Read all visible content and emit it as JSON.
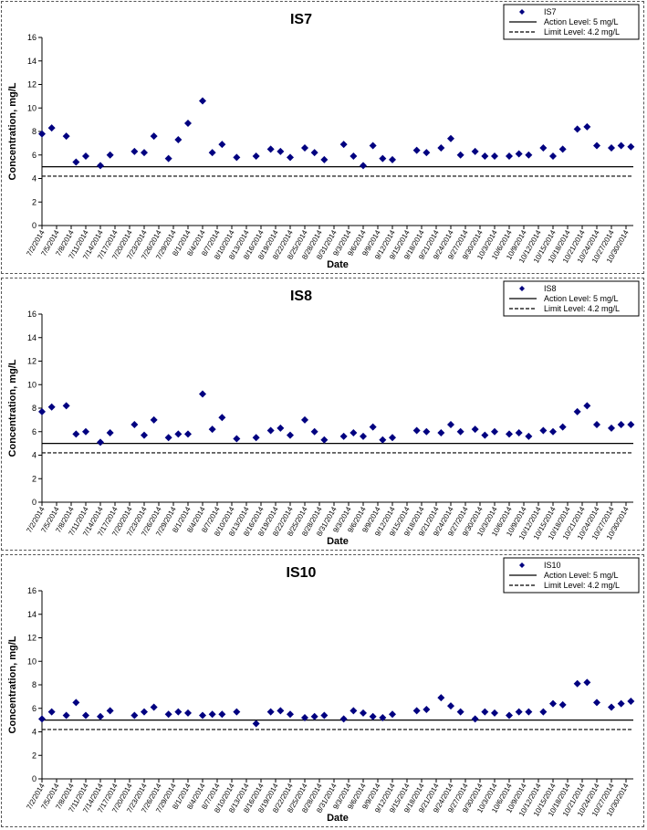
{
  "chart_data": [
    {
      "type": "scatter",
      "title": "IS7",
      "xlabel": "Date",
      "ylabel": "Concentration, mg/L",
      "ylim": [
        0,
        16
      ],
      "yticks": [
        0,
        2,
        4,
        6,
        8,
        10,
        12,
        14,
        16
      ],
      "grid": false,
      "legend": "top-right",
      "x_tick_labels": [
        "7/2/2014",
        "7/5/2014",
        "7/8/2014",
        "7/11/2014",
        "7/14/2014",
        "7/17/2014",
        "7/20/2014",
        "7/23/2014",
        "7/26/2014",
        "7/29/2014",
        "8/1/2014",
        "8/4/2014",
        "8/7/2014",
        "8/10/2014",
        "8/13/2014",
        "8/16/2014",
        "8/19/2014",
        "8/22/2014",
        "8/25/2014",
        "8/28/2014",
        "8/31/2014",
        "9/3/2014",
        "9/6/2014",
        "9/9/2014",
        "9/12/2014",
        "9/15/2014",
        "9/18/2014",
        "9/21/2014",
        "9/24/2014",
        "9/27/2014",
        "9/30/2014",
        "10/3/2014",
        "10/6/2014",
        "10/9/2014",
        "10/12/2014",
        "10/15/2014",
        "10/18/2014",
        "10/21/2014",
        "10/24/2014",
        "10/27/2014",
        "10/30/2014"
      ],
      "series": [
        {
          "name": "IS7",
          "marker": "diamond",
          "color": "#000080",
          "x": [
            "7/2/2014",
            "7/4/2014",
            "7/7/2014",
            "7/9/2014",
            "7/11/2014",
            "7/14/2014",
            "7/16/2014",
            "7/21/2014",
            "7/23/2014",
            "7/25/2014",
            "7/28/2014",
            "7/30/2014",
            "8/1/2014",
            "8/4/2014",
            "8/6/2014",
            "8/8/2014",
            "8/11/2014",
            "8/15/2014",
            "8/18/2014",
            "8/20/2014",
            "8/22/2014",
            "8/25/2014",
            "8/27/2014",
            "8/29/2014",
            "9/2/2014",
            "9/4/2014",
            "9/6/2014",
            "9/8/2014",
            "9/10/2014",
            "9/12/2014",
            "9/17/2014",
            "9/19/2014",
            "9/22/2014",
            "9/24/2014",
            "9/26/2014",
            "9/29/2014",
            "10/1/2014",
            "10/3/2014",
            "10/6/2014",
            "10/8/2014",
            "10/10/2014",
            "10/13/2014",
            "10/15/2014",
            "10/17/2014",
            "10/20/2014",
            "10/22/2014",
            "10/24/2014",
            "10/27/2014",
            "10/29/2014",
            "10/31/2014"
          ],
          "y": [
            7.8,
            8.3,
            7.6,
            5.4,
            5.9,
            5.1,
            6.0,
            6.3,
            6.2,
            7.6,
            5.7,
            7.3,
            8.7,
            10.6,
            6.2,
            6.9,
            5.8,
            5.9,
            6.5,
            6.3,
            5.8,
            6.6,
            6.2,
            5.6,
            6.9,
            5.9,
            5.1,
            6.8,
            5.7,
            5.6,
            6.4,
            6.2,
            6.6,
            7.4,
            6.0,
            6.3,
            5.9,
            5.9,
            5.9,
            6.1,
            6.0,
            6.6,
            5.9,
            6.5,
            8.2,
            8.4,
            6.8,
            6.6,
            6.8,
            6.7
          ]
        },
        {
          "name": "Action Level: 5 mg/L",
          "line": "solid",
          "value": 5
        },
        {
          "name": "Limit Level: 4.2 mg/L",
          "line": "dashed",
          "value": 4.2
        }
      ]
    },
    {
      "type": "scatter",
      "title": "IS8",
      "xlabel": "Date",
      "ylabel": "Concentration, mg/L",
      "ylim": [
        0,
        16
      ],
      "yticks": [
        0,
        2,
        4,
        6,
        8,
        10,
        12,
        14,
        16
      ],
      "grid": false,
      "legend": "top-right",
      "x_tick_labels": [
        "7/2/2014",
        "7/5/2014",
        "7/8/2014",
        "7/11/2014",
        "7/14/2014",
        "7/17/2014",
        "7/20/2014",
        "7/23/2014",
        "7/26/2014",
        "7/29/2014",
        "8/1/2014",
        "8/4/2014",
        "8/7/2014",
        "8/10/2014",
        "8/13/2014",
        "8/16/2014",
        "8/19/2014",
        "8/22/2014",
        "8/25/2014",
        "8/28/2014",
        "8/31/2014",
        "9/3/2014",
        "9/6/2014",
        "9/9/2014",
        "9/12/2014",
        "9/15/2014",
        "9/18/2014",
        "9/21/2014",
        "9/24/2014",
        "9/27/2014",
        "9/30/2014",
        "10/3/2014",
        "10/6/2014",
        "10/9/2014",
        "10/12/2014",
        "10/15/2014",
        "10/18/2014",
        "10/21/2014",
        "10/24/2014",
        "10/27/2014",
        "10/30/2014"
      ],
      "series": [
        {
          "name": "IS8",
          "marker": "diamond",
          "color": "#000080",
          "x": [
            "7/2/2014",
            "7/4/2014",
            "7/7/2014",
            "7/9/2014",
            "7/11/2014",
            "7/14/2014",
            "7/16/2014",
            "7/21/2014",
            "7/23/2014",
            "7/25/2014",
            "7/28/2014",
            "7/30/2014",
            "8/1/2014",
            "8/4/2014",
            "8/6/2014",
            "8/8/2014",
            "8/11/2014",
            "8/15/2014",
            "8/18/2014",
            "8/20/2014",
            "8/22/2014",
            "8/25/2014",
            "8/27/2014",
            "8/29/2014",
            "9/2/2014",
            "9/4/2014",
            "9/6/2014",
            "9/8/2014",
            "9/10/2014",
            "9/12/2014",
            "9/17/2014",
            "9/19/2014",
            "9/22/2014",
            "9/24/2014",
            "9/26/2014",
            "9/29/2014",
            "10/1/2014",
            "10/3/2014",
            "10/6/2014",
            "10/8/2014",
            "10/10/2014",
            "10/13/2014",
            "10/15/2014",
            "10/17/2014",
            "10/20/2014",
            "10/22/2014",
            "10/24/2014",
            "10/27/2014",
            "10/29/2014",
            "10/31/2014"
          ],
          "y": [
            7.7,
            8.1,
            8.2,
            5.8,
            6.0,
            5.1,
            5.9,
            6.6,
            5.7,
            7.0,
            5.5,
            5.8,
            5.8,
            9.2,
            6.2,
            7.2,
            5.4,
            5.5,
            6.1,
            6.3,
            5.7,
            7.0,
            6.0,
            5.3,
            5.6,
            5.9,
            5.6,
            6.4,
            5.3,
            5.5,
            6.1,
            6.0,
            5.9,
            6.6,
            6.0,
            6.2,
            5.7,
            6.0,
            5.8,
            5.9,
            5.6,
            6.1,
            6.0,
            6.4,
            7.7,
            8.2,
            6.6,
            6.3,
            6.6,
            6.6
          ]
        },
        {
          "name": "Action Level: 5 mg/L",
          "line": "solid",
          "value": 5
        },
        {
          "name": "Limit Level: 4.2 mg/L",
          "line": "dashed",
          "value": 4.2
        }
      ]
    },
    {
      "type": "scatter",
      "title": "IS10",
      "xlabel": "Date",
      "ylabel": "Concentration, mg/L",
      "ylim": [
        0,
        16
      ],
      "yticks": [
        0,
        2,
        4,
        6,
        8,
        10,
        12,
        14,
        16
      ],
      "grid": false,
      "legend": "top-right",
      "x_tick_labels": [
        "7/2/2014",
        "7/5/2014",
        "7/8/2014",
        "7/11/2014",
        "7/14/2014",
        "7/17/2014",
        "7/20/2014",
        "7/23/2014",
        "7/26/2014",
        "7/29/2014",
        "8/1/2014",
        "8/4/2014",
        "8/7/2014",
        "8/10/2014",
        "8/13/2014",
        "8/16/2014",
        "8/19/2014",
        "8/22/2014",
        "8/25/2014",
        "8/28/2014",
        "8/31/2014",
        "9/3/2014",
        "9/6/2014",
        "9/9/2014",
        "9/12/2014",
        "9/15/2014",
        "9/18/2014",
        "9/21/2014",
        "9/24/2014",
        "9/27/2014",
        "9/30/2014",
        "10/3/2014",
        "10/6/2014",
        "10/9/2014",
        "10/12/2014",
        "10/15/2014",
        "10/18/2014",
        "10/21/2014",
        "10/24/2014",
        "10/27/2014",
        "10/30/2014"
      ],
      "series": [
        {
          "name": "IS10",
          "marker": "diamond",
          "color": "#000080",
          "x": [
            "7/2/2014",
            "7/4/2014",
            "7/7/2014",
            "7/9/2014",
            "7/11/2014",
            "7/14/2014",
            "7/16/2014",
            "7/21/2014",
            "7/23/2014",
            "7/25/2014",
            "7/28/2014",
            "7/30/2014",
            "8/1/2014",
            "8/4/2014",
            "8/6/2014",
            "8/8/2014",
            "8/11/2014",
            "8/15/2014",
            "8/18/2014",
            "8/20/2014",
            "8/22/2014",
            "8/25/2014",
            "8/27/2014",
            "8/29/2014",
            "9/2/2014",
            "9/4/2014",
            "9/6/2014",
            "9/8/2014",
            "9/10/2014",
            "9/12/2014",
            "9/17/2014",
            "9/19/2014",
            "9/22/2014",
            "9/24/2014",
            "9/26/2014",
            "9/29/2014",
            "10/1/2014",
            "10/3/2014",
            "10/6/2014",
            "10/8/2014",
            "10/10/2014",
            "10/13/2014",
            "10/15/2014",
            "10/17/2014",
            "10/20/2014",
            "10/22/2014",
            "10/24/2014",
            "10/27/2014",
            "10/29/2014",
            "10/31/2014"
          ],
          "y": [
            5.1,
            5.7,
            5.4,
            6.5,
            5.4,
            5.3,
            5.8,
            5.4,
            5.7,
            6.1,
            5.5,
            5.7,
            5.6,
            5.4,
            5.5,
            5.5,
            5.7,
            4.7,
            5.7,
            5.8,
            5.5,
            5.2,
            5.3,
            5.4,
            5.1,
            5.8,
            5.6,
            5.3,
            5.2,
            5.5,
            5.8,
            5.9,
            6.9,
            6.2,
            5.7,
            5.1,
            5.7,
            5.6,
            5.4,
            5.7,
            5.7,
            5.7,
            6.4,
            6.3,
            8.1,
            8.2,
            6.5,
            6.1,
            6.4,
            6.6
          ]
        },
        {
          "name": "Action Level: 5 mg/L",
          "line": "solid",
          "value": 5
        },
        {
          "name": "Limit Level: 4.2 mg/L",
          "line": "dashed",
          "value": 4.2
        }
      ]
    }
  ]
}
